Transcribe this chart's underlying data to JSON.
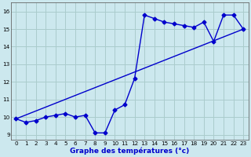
{
  "title": "Graphe des températures (°c)",
  "bg_color": "#cce8ee",
  "grid_color": "#aacccc",
  "line_color": "#0000cc",
  "ylim": [
    8.7,
    16.5
  ],
  "xlim": [
    -0.5,
    23.5
  ],
  "yticks": [
    9,
    10,
    11,
    12,
    13,
    14,
    15,
    16
  ],
  "xticks": [
    0,
    1,
    2,
    3,
    4,
    5,
    6,
    7,
    8,
    9,
    10,
    11,
    12,
    13,
    14,
    15,
    16,
    17,
    18,
    19,
    20,
    21,
    22,
    23
  ],
  "series1_x": [
    0,
    1,
    2,
    3,
    4,
    5,
    6,
    7,
    8,
    9,
    10,
    11,
    12,
    13,
    14,
    15,
    16,
    17,
    18,
    19,
    20,
    21,
    22,
    23
  ],
  "series1_y": [
    9.9,
    9.7,
    9.8,
    10.0,
    10.1,
    10.2,
    10.0,
    10.1,
    9.1,
    9.1,
    10.4,
    10.7,
    12.2,
    15.8,
    15.6,
    15.4,
    15.3,
    15.2,
    15.1,
    15.4,
    14.3,
    15.8,
    15.8,
    15.0
  ],
  "series2_x": [
    0,
    23
  ],
  "series2_y": [
    9.9,
    15.0
  ],
  "marker": "D",
  "markersize": 2.5,
  "linewidth": 1.0,
  "xlabel_fontsize": 6.5,
  "tick_fontsize": 5.2
}
